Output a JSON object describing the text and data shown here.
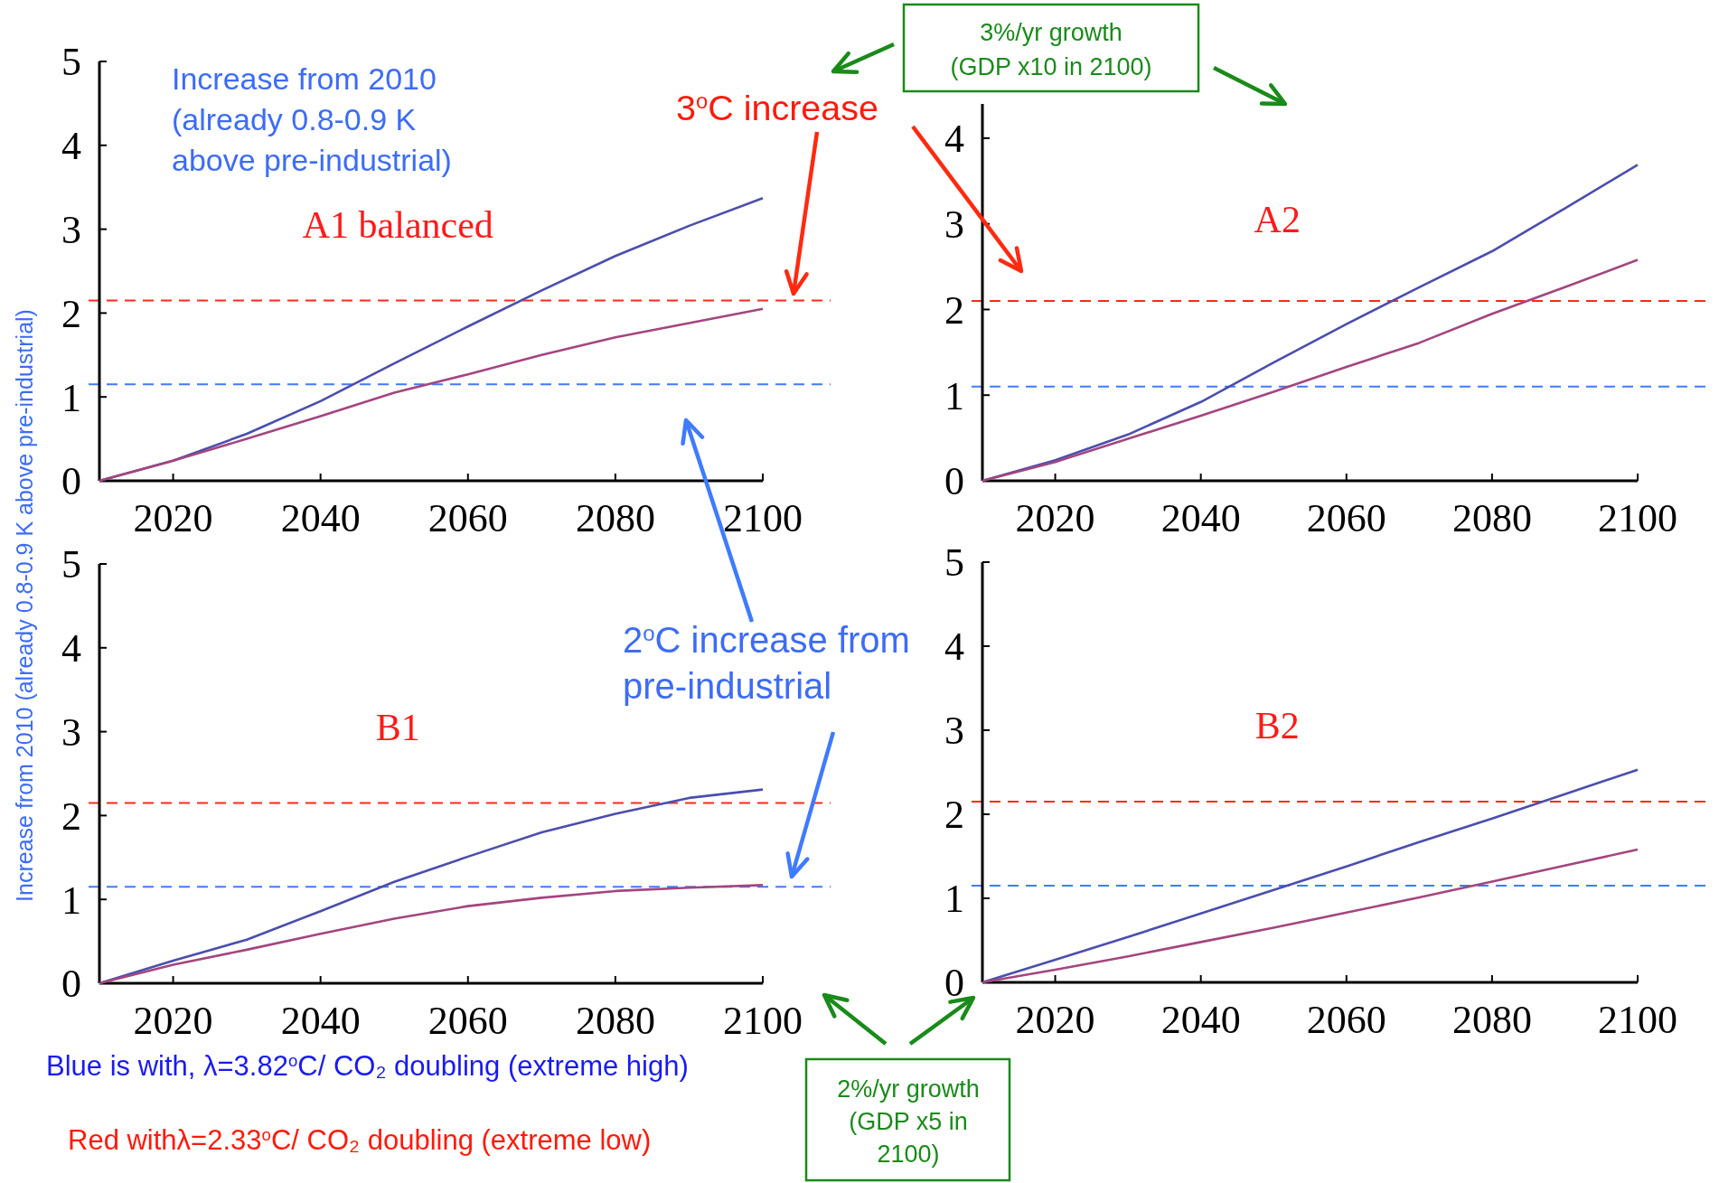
{
  "chart_data": [
    {
      "type": "line",
      "title": "A1 balanced",
      "ylabel": "Increase from 2010 (already 0.8-0.9 K above pre-industrial)",
      "annotations": [
        "Increase from 2010\n(already 0.8-0.9 K\nabove pre-industrial)",
        "3$^{o}$C increase",
        "3%/yr growth\n(GDP x10 in 2100)",
        "2$^{o}$C increase from\npre-industrial",
        "2%/yr growth\n(GDP x5 in\n2100)",
        "Blue is with, λ=3.82$^{o}$C/ CO₂ doubling (extreme high)",
        "Red withλ=2.33$^{o}$C/ CO₂ doubling (extreme low)"
      ],
      "x": [
        2010,
        2020,
        2030,
        2040,
        2050,
        2060,
        2070,
        2080,
        2090,
        2100
      ],
      "series": [
        {
          "color": "#4b4ead",
          "values": [
            0,
            0.24,
            0.56,
            0.95,
            1.4,
            1.84,
            2.27,
            2.68,
            3.04,
            3.37
          ]
        },
        {
          "color": "#a4457f",
          "values": [
            0,
            0.24,
            0.5,
            0.77,
            1.05,
            1.27,
            1.5,
            1.71,
            1.88,
            2.05
          ]
        }
      ],
      "xlim": [
        2010,
        2100
      ],
      "ylim": [
        0,
        5
      ],
      "xticks": [
        2020,
        2040,
        2060,
        2080,
        2100
      ],
      "yticks": [
        0,
        1,
        2,
        3,
        4,
        5
      ],
      "ref_lines": [
        {
          "axis": "y",
          "value": 2.15,
          "color": "#ff2a1a",
          "line_style": "dashed"
        },
        {
          "axis": "y",
          "value": 1.15,
          "color": "#3f7bff",
          "line_style": "dashed"
        }
      ]
    },
    {
      "type": "line",
      "title": "A2",
      "x": [
        2010,
        2020,
        2030,
        2040,
        2050,
        2060,
        2070,
        2080,
        2090,
        2100
      ],
      "series": [
        {
          "color": "#4b4ead",
          "values": [
            0,
            0.24,
            0.54,
            0.92,
            1.38,
            1.83,
            2.26,
            2.68,
            3.18,
            3.69
          ]
        },
        {
          "color": "#a4457f",
          "values": [
            0,
            0.22,
            0.49,
            0.76,
            1.04,
            1.33,
            1.61,
            1.95,
            2.26,
            2.58
          ]
        }
      ],
      "xlim": [
        2010,
        2100
      ],
      "ylim": [
        0,
        4.4
      ],
      "xticks": [
        2020,
        2040,
        2060,
        2080,
        2100
      ],
      "yticks": [
        0,
        1,
        2,
        3,
        4
      ],
      "ref_lines": [
        {
          "axis": "y",
          "value": 2.1,
          "color": "#ff2a1a",
          "line_style": "dashed"
        },
        {
          "axis": "y",
          "value": 1.1,
          "color": "#3f7bff",
          "line_style": "dashed"
        }
      ]
    },
    {
      "type": "line",
      "title": "B1",
      "x": [
        2010,
        2020,
        2030,
        2040,
        2050,
        2060,
        2070,
        2080,
        2090,
        2100
      ],
      "series": [
        {
          "color": "#4b4ead",
          "values": [
            0,
            0.27,
            0.52,
            0.86,
            1.21,
            1.51,
            1.8,
            2.02,
            2.21,
            2.31
          ]
        },
        {
          "color": "#a4457f",
          "values": [
            0,
            0.22,
            0.4,
            0.59,
            0.77,
            0.92,
            1.02,
            1.1,
            1.14,
            1.17
          ]
        }
      ],
      "xlim": [
        2010,
        2100
      ],
      "ylim": [
        0,
        5
      ],
      "xticks": [
        2020,
        2040,
        2060,
        2080,
        2100
      ],
      "yticks": [
        0,
        1,
        2,
        3,
        4,
        5
      ],
      "ref_lines": [
        {
          "axis": "y",
          "value": 2.15,
          "color": "#ff2a1a",
          "line_style": "dashed"
        },
        {
          "axis": "y",
          "value": 1.15,
          "color": "#3f7bff",
          "line_style": "dashed"
        }
      ]
    },
    {
      "type": "line",
      "title": "B2",
      "x": [
        2010,
        2020,
        2030,
        2040,
        2050,
        2060,
        2070,
        2080,
        2090,
        2100
      ],
      "series": [
        {
          "color": "#4b4ead",
          "values": [
            0,
            0.27,
            0.54,
            0.82,
            1.1,
            1.38,
            1.67,
            1.95,
            2.24,
            2.53
          ]
        },
        {
          "color": "#a4457f",
          "values": [
            0,
            0.15,
            0.31,
            0.48,
            0.65,
            0.83,
            1.01,
            1.2,
            1.39,
            1.58
          ]
        }
      ],
      "xlim": [
        2010,
        2100
      ],
      "ylim": [
        0,
        5
      ],
      "xticks": [
        2020,
        2040,
        2060,
        2080,
        2100
      ],
      "yticks": [
        0,
        1,
        2,
        3,
        4,
        5
      ],
      "ref_lines": [
        {
          "axis": "y",
          "value": 2.15,
          "color": "#ff2a1a",
          "line_style": "dashed"
        },
        {
          "axis": "y",
          "value": 1.15,
          "color": "#3f7bff",
          "line_style": "dashed"
        }
      ]
    }
  ]
}
